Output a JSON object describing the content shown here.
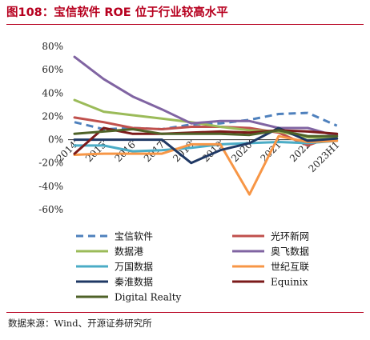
{
  "title": "图108：宝信软件 ROE 位于行业较高水平",
  "source": "数据来源：Wind、开源证券研究所",
  "chart_data": {
    "type": "line",
    "categories": [
      "2014",
      "2015",
      "2016",
      "2017",
      "2018",
      "2019",
      "2020",
      "2021",
      "2022",
      "2023H1"
    ],
    "y_ticks": [
      "80%",
      "60%",
      "40%",
      "20%",
      "0%",
      "-20%",
      "-40%",
      "-60%"
    ],
    "ylim": [
      -60,
      80
    ],
    "series": [
      {
        "name": "宝信软件",
        "color": "#4f81bd",
        "dash": true,
        "values": [
          15,
          9,
          10,
          9,
          13,
          14,
          17,
          22,
          23,
          12
        ]
      },
      {
        "name": "光环新网",
        "color": "#c0504d",
        "dash": false,
        "values": [
          19,
          15,
          10,
          9,
          11,
          11,
          10,
          6,
          -5,
          4
        ]
      },
      {
        "name": "数据港",
        "color": "#9bbb59",
        "dash": false,
        "values": [
          34,
          24,
          21,
          18,
          15,
          11,
          8,
          7,
          2,
          1
        ]
      },
      {
        "name": "奥飞数据",
        "color": "#8064a2",
        "dash": false,
        "values": [
          71,
          52,
          37,
          26,
          14,
          16,
          16,
          10,
          10,
          3
        ]
      },
      {
        "name": "万国数据",
        "color": "#4bacc6",
        "dash": false,
        "values": [
          -5,
          -5,
          -10,
          -9,
          -7,
          -4,
          -3,
          -2,
          -3,
          -1
        ]
      },
      {
        "name": "世纪互联",
        "color": "#f79646",
        "dash": false,
        "values": [
          -13,
          -12,
          -12,
          -12,
          -4,
          -4,
          -47,
          3,
          -2,
          -1
        ]
      },
      {
        "name": "秦淮数据",
        "color": "#1f3864",
        "dash": false,
        "values": [
          0,
          0,
          0,
          0,
          -20,
          -9,
          -3,
          10,
          -1,
          1
        ]
      },
      {
        "name": "Equinix",
        "color": "#7b1a1a",
        "dash": false,
        "values": [
          -12,
          10,
          5,
          5,
          6,
          7,
          6,
          8,
          7,
          5
        ]
      },
      {
        "name": "Digital Realty",
        "color": "#4f6228",
        "dash": false,
        "values": [
          5,
          7,
          9,
          5,
          5,
          5,
          4,
          8,
          3,
          3
        ]
      }
    ]
  }
}
